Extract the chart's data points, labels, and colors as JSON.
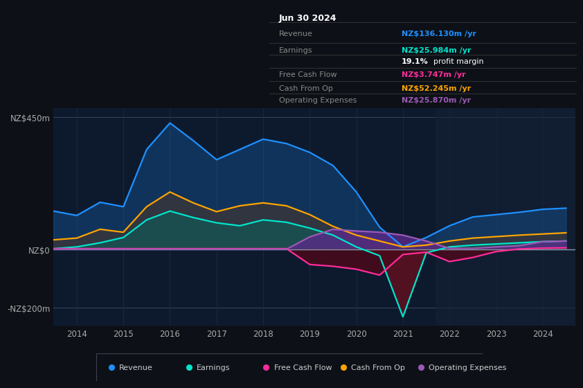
{
  "bg_color": "#0d1117",
  "plot_bg_color": "#0d1a2e",
  "title": "Jun 30 2024",
  "years": [
    2013.5,
    2014,
    2014.5,
    2015,
    2015.5,
    2016,
    2016.5,
    2017,
    2017.5,
    2018,
    2018.5,
    2019,
    2019.5,
    2020,
    2020.5,
    2021,
    2021.5,
    2022,
    2022.5,
    2023,
    2023.5,
    2024,
    2024.5
  ],
  "revenue": [
    130,
    115,
    160,
    145,
    340,
    430,
    370,
    305,
    340,
    375,
    360,
    330,
    285,
    195,
    75,
    8,
    40,
    80,
    110,
    118,
    126,
    136,
    140
  ],
  "earnings": [
    2,
    8,
    22,
    40,
    100,
    130,
    108,
    90,
    80,
    100,
    92,
    72,
    48,
    8,
    -22,
    -230,
    -12,
    8,
    14,
    18,
    22,
    26,
    28
  ],
  "free_cash_flow": [
    2,
    2,
    2,
    2,
    2,
    2,
    2,
    2,
    2,
    2,
    2,
    -52,
    -58,
    -68,
    -88,
    -18,
    -10,
    -42,
    -28,
    -8,
    1,
    3.747,
    5
  ],
  "cash_from_op": [
    32,
    38,
    68,
    58,
    145,
    195,
    158,
    128,
    148,
    158,
    148,
    118,
    78,
    48,
    28,
    8,
    14,
    28,
    38,
    43,
    48,
    52,
    56
  ],
  "operating_expenses": [
    0,
    0,
    0,
    0,
    0,
    0,
    0,
    0,
    0,
    0,
    0,
    42,
    68,
    62,
    58,
    48,
    28,
    3,
    3,
    8,
    12,
    26,
    28
  ],
  "revenue_color": "#1e90ff",
  "earnings_color": "#00e5cc",
  "fcf_color": "#ff2d9b",
  "cashop_color": "#ffa500",
  "opex_color": "#9b59b6",
  "ylim_min": -260,
  "ylim_max": 480,
  "yticks": [
    -200,
    0,
    450
  ],
  "ytick_labels": [
    "-NZ$200m",
    "NZ$0",
    "NZ$450m"
  ],
  "xmin": 2013.5,
  "xmax": 2024.7,
  "xticks": [
    2014,
    2015,
    2016,
    2017,
    2018,
    2019,
    2020,
    2021,
    2022,
    2023,
    2024
  ],
  "info_box": {
    "date": "Jun 30 2024",
    "rows": [
      {
        "label": "Revenue",
        "value": "NZ$136.130m /yr",
        "value_color": "#1e90ff"
      },
      {
        "label": "Earnings",
        "value": "NZ$25.984m /yr",
        "value_color": "#00e5cc"
      },
      {
        "label": "",
        "value": "19.1% profit margin",
        "value_color": "#ffffff"
      },
      {
        "label": "Free Cash Flow",
        "value": "NZ$3.747m /yr",
        "value_color": "#ff2d9b"
      },
      {
        "label": "Cash From Op",
        "value": "NZ$52.245m /yr",
        "value_color": "#ffa500"
      },
      {
        "label": "Operating Expenses",
        "value": "NZ$25.870m /yr",
        "value_color": "#9b59b6"
      }
    ]
  },
  "legend_items": [
    {
      "label": "Revenue",
      "color": "#1e90ff"
    },
    {
      "label": "Earnings",
      "color": "#00e5cc"
    },
    {
      "label": "Free Cash Flow",
      "color": "#ff2d9b"
    },
    {
      "label": "Cash From Op",
      "color": "#ffa500"
    },
    {
      "label": "Operating Expenses",
      "color": "#9b59b6"
    }
  ]
}
